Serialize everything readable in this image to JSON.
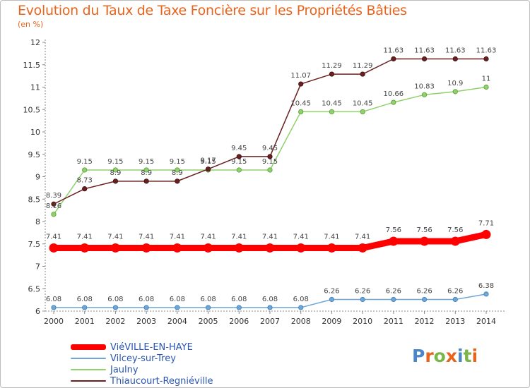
{
  "header": {
    "title": "Evolution du Taux de Taxe Foncière sur les Propriétés Bâties",
    "unit": "(en %)"
  },
  "logo": {
    "letters": [
      "P",
      "r",
      "o",
      "x",
      "i",
      "t",
      "i"
    ],
    "colors": [
      "#4a86c8",
      "#e8641c",
      "#7ab648",
      "#e8641c",
      "#4a86c8",
      "#7ab648",
      "#e8641c"
    ]
  },
  "chart_data": {
    "type": "line",
    "x": [
      "2000",
      "2001",
      "2002",
      "2003",
      "2004",
      "2005",
      "2006",
      "2007",
      "2008",
      "2009",
      "2010",
      "2011",
      "2012",
      "2013",
      "2014"
    ],
    "ylim": [
      6,
      12
    ],
    "yticks": [
      "6",
      "6.5",
      "7",
      "7.5",
      "8",
      "8.5",
      "9",
      "9.5",
      "10",
      "10.5",
      "11",
      "11.5",
      "12"
    ],
    "grid": false,
    "legend_position": "bottom-left",
    "series": [
      {
        "name": "Thiaucourt-Regniéville",
        "color": "#6b1f1f",
        "values": [
          8.39,
          8.73,
          8.9,
          8.9,
          8.9,
          9.17,
          9.45,
          9.45,
          11.07,
          11.29,
          11.29,
          11.63,
          11.63,
          11.63,
          11.63
        ],
        "labels": [
          "8.39",
          "8.73",
          "8.9",
          "8.9",
          "8.9",
          "9.17",
          "9.45",
          "9.45",
          "11.07",
          "11.29",
          "11.29",
          "11.63",
          "11.63",
          "11.63",
          "11.63"
        ]
      },
      {
        "name": "Jaulny",
        "color": "#8fd16b",
        "values": [
          8.16,
          9.15,
          9.15,
          9.15,
          9.15,
          9.15,
          9.15,
          9.15,
          10.45,
          10.45,
          10.45,
          10.66,
          10.83,
          10.9,
          11
        ],
        "labels": [
          "8.16",
          "9.15",
          "9.15",
          "9.15",
          "9.15",
          "9.15",
          "9.15",
          "9.15",
          "10.45",
          "10.45",
          "10.45",
          "10.66",
          "10.83",
          "10.9",
          "11"
        ]
      },
      {
        "name": "ViéVILLE-EN-HAYE",
        "color": "#ff0000",
        "values": [
          7.41,
          7.41,
          7.41,
          7.41,
          7.41,
          7.41,
          7.41,
          7.41,
          7.41,
          7.41,
          7.41,
          7.56,
          7.56,
          7.56,
          7.71
        ],
        "labels": [
          "7.41",
          "7.41",
          "7.41",
          "7.41",
          "7.41",
          "7.41",
          "7.41",
          "7.41",
          "7.41",
          "7.41",
          "7.41",
          "7.56",
          "7.56",
          "7.56",
          "7.71"
        ]
      },
      {
        "name": "Vilcey-sur-Trey",
        "color": "#6fa6d6",
        "values": [
          6.08,
          6.08,
          6.08,
          6.08,
          6.08,
          6.08,
          6.08,
          6.08,
          6.08,
          6.26,
          6.26,
          6.26,
          6.26,
          6.26,
          6.38
        ],
        "labels": [
          "6.08",
          "6.08",
          "6.08",
          "6.08",
          "6.08",
          "6.08",
          "6.08",
          "6.08",
          "6.08",
          "6.26",
          "6.26",
          "6.26",
          "6.26",
          "6.26",
          "6.38"
        ]
      }
    ],
    "legend": [
      "ViéVILLE-EN-HAYE",
      "Vilcey-sur-Trey",
      "Jaulny",
      "Thiaucourt-Regniéville"
    ]
  }
}
